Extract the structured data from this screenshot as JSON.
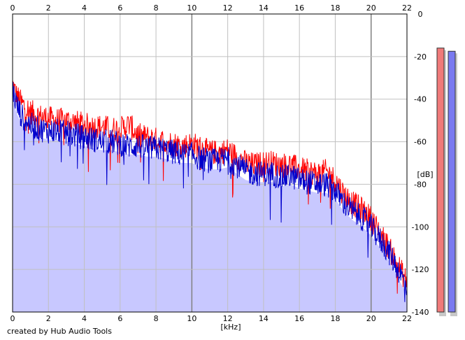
{
  "footer": "created by Hub Audio Tools",
  "chart_data": {
    "type": "line",
    "xlabel": "[kHz]",
    "ylabel": "[dB]",
    "xlim": [
      0,
      22
    ],
    "ylim": [
      -140,
      0
    ],
    "x_ticks": [
      0,
      2,
      4,
      6,
      8,
      10,
      12,
      14,
      16,
      18,
      20,
      22
    ],
    "y_ticks": [
      0,
      -20,
      -40,
      -60,
      -80,
      -100,
      -120,
      -140
    ],
    "grid": true,
    "colors": {
      "red_channel": "#ff0000",
      "blue_channel": "#0000cc",
      "fill": "#c8c8ff",
      "grid_minor": "#c0c0c0",
      "grid_major": "#808080"
    },
    "series": [
      {
        "color": "#ff0000",
        "x": [
          0,
          0.2,
          0.5,
          1,
          1.5,
          2,
          2.5,
          3,
          3.5,
          4,
          4.5,
          5,
          5.5,
          6,
          6.5,
          7,
          7.5,
          8,
          8.5,
          9,
          9.5,
          10,
          10.5,
          11,
          11.5,
          12,
          12.5,
          13,
          13.5,
          14,
          14.5,
          15,
          15.5,
          16,
          16.5,
          17,
          17.5,
          18,
          18.5,
          19,
          19.5,
          20,
          20.5,
          21,
          21.5,
          22
        ],
        "y": [
          -33,
          -38,
          -42,
          -46,
          -48,
          -49,
          -50,
          -50,
          -51,
          -52,
          -53,
          -53,
          -54,
          -54,
          -52,
          -57,
          -58,
          -59,
          -60,
          -61,
          -62,
          -61,
          -63,
          -65,
          -65,
          -64,
          -67,
          -70,
          -71,
          -70,
          -70,
          -71,
          -71,
          -73,
          -74,
          -75,
          -74,
          -78,
          -85,
          -89,
          -92,
          -96,
          -103,
          -110,
          -118,
          -126
        ]
      },
      {
        "color": "#0000cc",
        "x": [
          0,
          0.2,
          0.5,
          1,
          1.5,
          2,
          2.5,
          3,
          3.5,
          4,
          4.5,
          5,
          5.5,
          6,
          6.5,
          7,
          7.5,
          8,
          8.5,
          9,
          9.5,
          10,
          10.5,
          11,
          11.5,
          12,
          12.5,
          13,
          13.5,
          14,
          14.5,
          15,
          15.5,
          16,
          16.5,
          17,
          17.5,
          18,
          18.5,
          19,
          19.5,
          20,
          20.5,
          21,
          21.5,
          22
        ],
        "y": [
          -35,
          -42,
          -48,
          -52,
          -54,
          -55,
          -55,
          -56,
          -57,
          -58,
          -59,
          -60,
          -60,
          -61,
          -62,
          -62,
          -63,
          -63,
          -64,
          -65,
          -66,
          -66,
          -68,
          -69,
          -69,
          -68,
          -71,
          -74,
          -75,
          -75,
          -75,
          -77,
          -76,
          -78,
          -79,
          -80,
          -80,
          -83,
          -89,
          -93,
          -96,
          -100,
          -106,
          -112,
          -120,
          -128
        ]
      }
    ],
    "level_bars": [
      {
        "color": "#f07a7a",
        "value": -16
      },
      {
        "color": "#7a7af0",
        "value": -17.5
      }
    ]
  }
}
